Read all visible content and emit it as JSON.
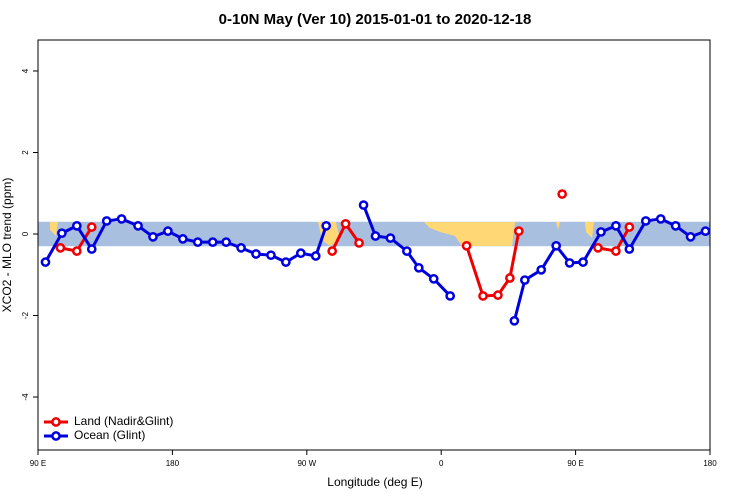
{
  "chart_data": {
    "type": "line",
    "title": "0-10N May (Ver 10)   2015-01-01 to 2020-12-18",
    "xlabel": "Longitude (deg E)",
    "ylabel": "XCO2 - MLO trend (ppm)",
    "xlim": [
      90,
      540
    ],
    "xticks": [
      {
        "value": 90,
        "label": "90 E"
      },
      180,
      {
        "value": 270,
        "label": "90 W"
      },
      {
        "value": 360,
        "label": "0"
      },
      {
        "value": 450,
        "label": "90 E"
      },
      {
        "value": 540,
        "label": "180"
      }
    ],
    "ylim": [
      -5.3,
      4.76
    ],
    "yticks": [
      -4,
      -2,
      0,
      2,
      4
    ],
    "band": {
      "ymin": -0.3,
      "ymax": 0.3,
      "color": "#a8bfe0"
    },
    "legend": "bottom-left",
    "series": [
      {
        "name": "Land (Nadir&Glint)",
        "color": "#ee0000",
        "x": [
          105,
          116,
          126,
          null,
          287,
          296,
          305,
          null,
          377,
          388,
          398,
          406,
          412,
          null,
          441,
          null,
          465,
          477,
          486
        ],
        "values": [
          -0.34,
          -0.42,
          0.17,
          null,
          -0.42,
          0.25,
          -0.22,
          null,
          -0.29,
          -1.52,
          -1.5,
          -1.08,
          0.07,
          null,
          0.98,
          null,
          -0.34,
          -0.42,
          0.17
        ]
      },
      {
        "name": "Ocean (Glint)",
        "color": "#0000dd",
        "x": [
          95,
          106,
          116,
          126,
          136,
          146,
          157,
          167,
          177,
          187,
          197,
          207,
          216,
          226,
          236,
          246,
          256,
          266,
          276,
          283,
          null,
          308,
          316,
          326,
          337,
          345,
          355,
          366,
          null,
          409,
          416,
          427,
          437,
          446,
          455,
          467,
          477,
          486,
          497,
          507,
          517,
          527,
          537
        ],
        "values": [
          -0.69,
          0.02,
          0.2,
          -0.37,
          0.32,
          0.37,
          0.2,
          -0.07,
          0.07,
          -0.12,
          -0.2,
          -0.2,
          -0.2,
          -0.34,
          -0.49,
          -0.52,
          -0.69,
          -0.47,
          -0.54,
          0.2,
          null,
          0.71,
          -0.05,
          -0.1,
          -0.42,
          -0.83,
          -1.1,
          -1.52,
          null,
          -2.13,
          -1.13,
          -0.88,
          -0.29,
          -0.71,
          -0.69,
          0.05,
          0.2,
          -0.37,
          0.32,
          0.37,
          0.2,
          -0.07,
          0.07
        ]
      }
    ]
  }
}
